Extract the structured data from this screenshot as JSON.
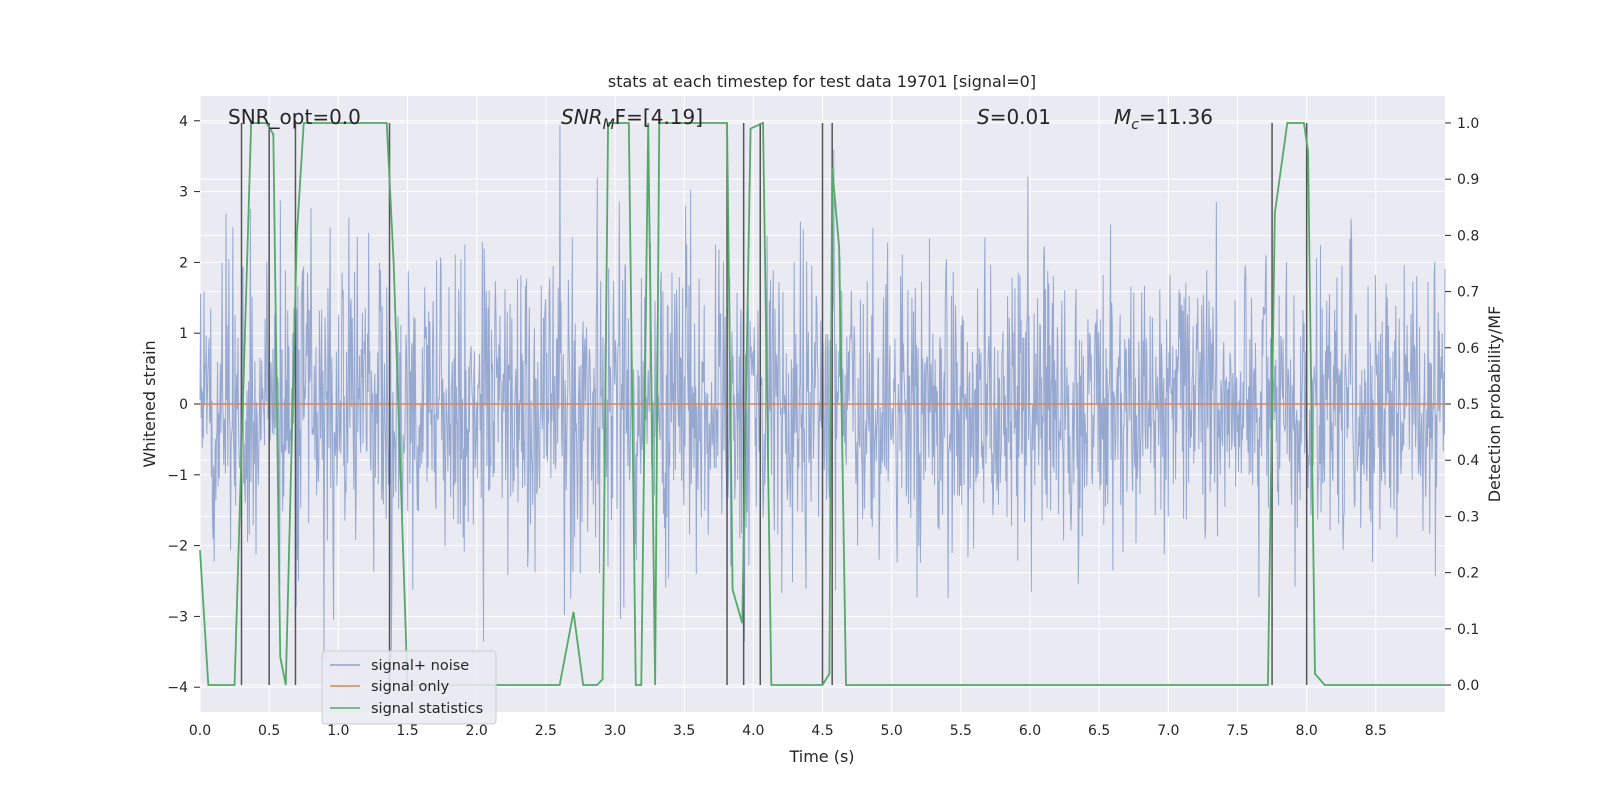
{
  "chart_data": {
    "type": "line",
    "title": "stats at each timestep for test data 19701 [signal=0]",
    "xlabel": "Time (s)",
    "ylabel": "Whitened strain",
    "y2label": "Detection probability/MF",
    "xlim": [
      0,
      9
    ],
    "ylim": [
      -4.35,
      4.35
    ],
    "y2lim": [
      -0.048,
      1.048
    ],
    "xticks": [
      "0.0",
      "0.5",
      "1.0",
      "1.5",
      "2.0",
      "2.5",
      "3.0",
      "3.5",
      "4.0",
      "4.5",
      "5.0",
      "5.5",
      "6.0",
      "6.5",
      "7.0",
      "7.5",
      "8.0",
      "8.5"
    ],
    "yticks": [
      "4",
      "3",
      "2",
      "1",
      "0",
      "−1",
      "−2",
      "−3",
      "−4"
    ],
    "y2ticks": [
      "1.0",
      "0.9",
      "0.8",
      "0.7",
      "0.6",
      "0.5",
      "0.4",
      "0.3",
      "0.2",
      "0.1",
      "0.0"
    ],
    "annotations": {
      "snr_opt": "SNR_opt=0.0",
      "snr_mf_name": "SNR",
      "snr_mf_sub": "M",
      "snr_mf_rest": "F=[4.19]",
      "s_name": "S",
      "s_rest": "=0.01",
      "mc_name": "M",
      "mc_sub": "c",
      "mc_rest": "=11.36"
    },
    "legend": {
      "position": "lower-left",
      "entries": [
        "signal+ noise",
        "signal only",
        "signal statistics"
      ]
    },
    "colors": {
      "noise": "#8da1cc",
      "signal_only": "#dd8452",
      "statistics": "#55a868",
      "background": "#eaeaf2",
      "grid": "#ffffff",
      "vlines": "#555555"
    },
    "series": [
      {
        "name": "signal+ noise",
        "description_range": "whitened noise approx between -3.6 and 4.0",
        "noise_seed": 19701
      },
      {
        "name": "signal only",
        "x": [
          0,
          9
        ],
        "y": [
          0,
          0
        ]
      },
      {
        "name": "signal statistics",
        "axis": "right",
        "x": [
          0.0,
          0.06,
          0.25,
          0.31,
          0.37,
          0.48,
          0.53,
          0.58,
          0.62,
          0.7,
          0.75,
          0.8,
          1.35,
          1.4,
          1.5,
          2.6,
          2.7,
          2.77,
          2.87,
          2.91,
          2.95,
          3.0,
          3.1,
          3.15,
          3.19,
          3.24,
          3.29,
          3.32,
          3.42,
          3.81,
          3.85,
          3.92,
          3.98,
          4.07,
          4.13,
          4.5,
          4.55,
          4.57,
          4.62,
          4.67,
          7.72,
          7.77,
          7.86,
          7.98,
          8.01,
          8.06,
          8.13,
          8.2,
          8.35,
          8.4,
          9.0
        ],
        "y": [
          0.24,
          0.0,
          0.0,
          0.5,
          1.0,
          1.0,
          0.98,
          0.05,
          0.0,
          0.8,
          1.0,
          1.0,
          1.0,
          0.75,
          0.0,
          0.0,
          0.13,
          0.0,
          0.0,
          0.01,
          1.0,
          1.0,
          1.0,
          0.0,
          0.0,
          1.0,
          0.0,
          1.0,
          1.0,
          1.0,
          0.17,
          0.11,
          0.99,
          1.0,
          0.0,
          0.0,
          0.02,
          0.92,
          0.78,
          0.0,
          0.0,
          0.84,
          1.0,
          1.0,
          0.95,
          0.02,
          0.0,
          0.0,
          0.0,
          0.0,
          0.0
        ]
      }
    ],
    "vlines_x": [
      0.3,
      0.5,
      0.69,
      1.37,
      3.81,
      3.93,
      4.05,
      4.5,
      4.57,
      7.75,
      8.0
    ]
  }
}
